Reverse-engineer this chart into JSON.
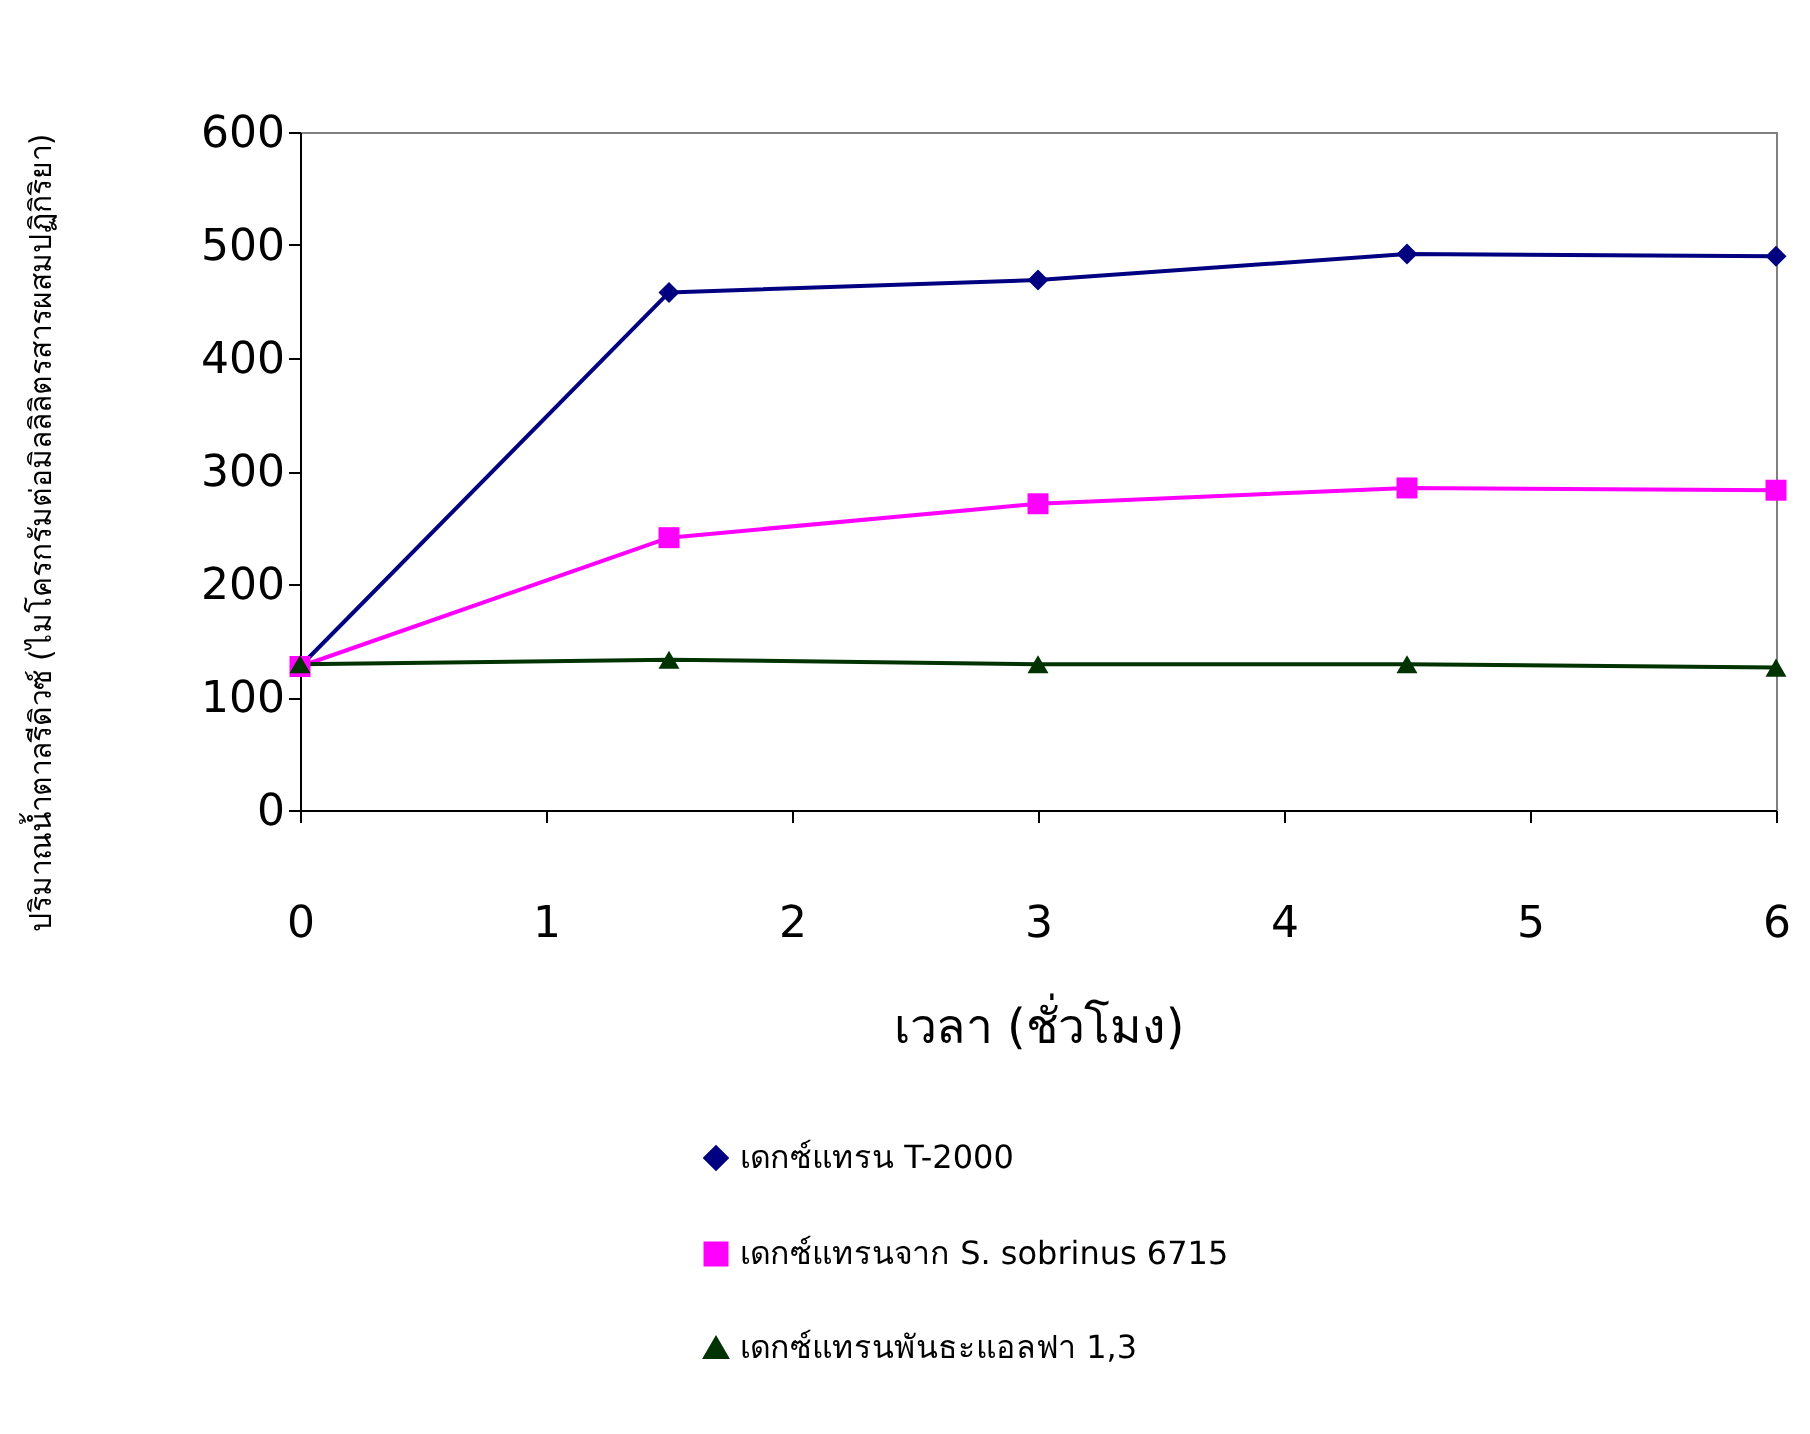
{
  "chart_data": {
    "type": "line",
    "xlabel": "เวลา (ชั่วโมง)",
    "ylabel": "ปริมาณน้ำตาลรีดิวซ์ (ไมโครกรัมต่อมิลลิลิตรสารผสมปฏิกิริยา)",
    "x": [
      0,
      1.5,
      3,
      4.5,
      6
    ],
    "xlim": [
      0,
      6
    ],
    "xticks": [
      0,
      1,
      2,
      3,
      4,
      5,
      6
    ],
    "ylim": [
      0,
      600
    ],
    "yticks": [
      0,
      100,
      200,
      300,
      400,
      500,
      600
    ],
    "grid": false,
    "legend": "bottom",
    "line_style": "solid",
    "series": [
      {
        "name": "เดกซ์แทรน T-2000",
        "color": "#000080",
        "marker": "diamond",
        "values": [
          127,
          458,
          469,
          492,
          490
        ]
      },
      {
        "name": "เดกซ์แทรนจาก S. sobrinus 6715",
        "color": "#ff00ff",
        "marker": "square",
        "values": [
          127,
          241,
          271,
          285,
          283
        ]
      },
      {
        "name": "เดกซ์แทรนพันธะแอลฟา 1,3",
        "color": "#003300",
        "marker": "triangle",
        "values": [
          129,
          133,
          129,
          129,
          126
        ]
      }
    ]
  }
}
